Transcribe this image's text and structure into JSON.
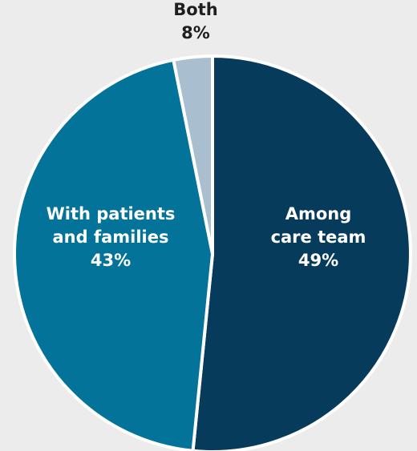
{
  "chart_data": {
    "type": "pie",
    "title": "",
    "start_angle_deg": 0,
    "direction": "clockwise",
    "slices": [
      {
        "name": "Among care team",
        "label_lines": [
          "Among",
          "care team",
          "49%"
        ],
        "value": 49,
        "color": "#073b5c",
        "label_color": "#ffffff",
        "label_position": "inside"
      },
      {
        "name": "With patients and families",
        "label_lines": [
          "With patients",
          "and families",
          "43%"
        ],
        "value": 43,
        "color": "#04739a",
        "label_color": "#ffffff",
        "label_position": "inside"
      },
      {
        "name": "Both",
        "label_lines": [
          "Both",
          "8%"
        ],
        "value": 8,
        "visual_value": 3,
        "color": "#a9bfcf",
        "label_color": "#1f1f1f",
        "label_position": "outside-top"
      }
    ]
  },
  "colors": {
    "background": "#ececec",
    "separator": "#ffffff"
  }
}
